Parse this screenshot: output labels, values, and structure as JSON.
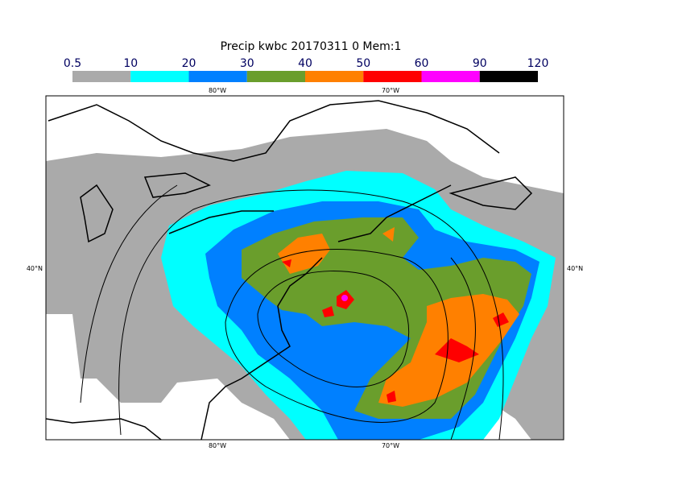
{
  "title": "Precip kwbc 20170311 0 Mem:1",
  "colorbar": {
    "bins": [
      0.5,
      10,
      20,
      30,
      40,
      50,
      60,
      90,
      120
    ],
    "colors": [
      "#aaaaaa",
      "#00ffff",
      "#0080ff",
      "#6a9e2c",
      "#ff8000",
      "#ff0000",
      "#ff00ff",
      "#000000"
    ]
  },
  "map": {
    "x_labels_top": [
      "80°W",
      "70°W"
    ],
    "x_labels_bottom": [
      "80°W",
      "70°W"
    ],
    "y_labels_left": [
      "40°N"
    ],
    "y_labels_right": [
      "40°N"
    ]
  }
}
